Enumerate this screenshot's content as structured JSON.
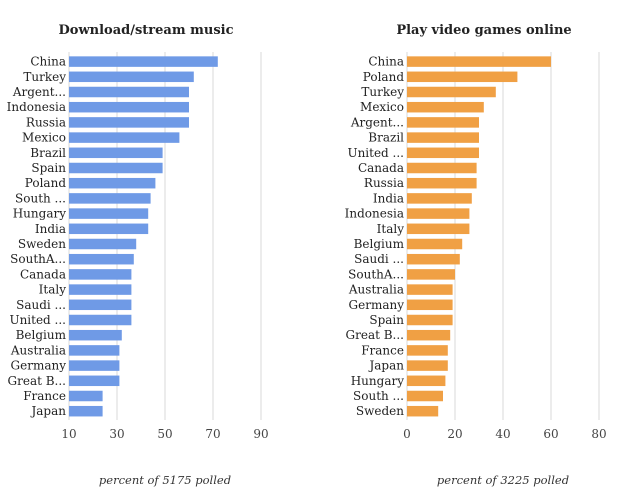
{
  "chart_data": [
    {
      "type": "bar",
      "orientation": "horizontal",
      "title": "Download/stream music",
      "xlabel": "percent of 5175 polled",
      "color": "#6f9ae6",
      "xlim": [
        10,
        90
      ],
      "xticks": [
        10,
        30,
        50,
        70,
        90
      ],
      "grid": true,
      "categories": [
        "China",
        "Turkey",
        "Argent...",
        "Indonesia",
        "Russia",
        "Mexico",
        "Brazil",
        "Spain",
        "Poland",
        "South ...",
        "Hungary",
        "India",
        "Sweden",
        "SouthA...",
        "Canada",
        "Italy",
        "Saudi ...",
        "United ...",
        "Belgium",
        "Australia",
        "Germany",
        "Great B...",
        "France",
        "Japan"
      ],
      "values": [
        72,
        62,
        60,
        60,
        60,
        56,
        49,
        49,
        46,
        44,
        43,
        43,
        38,
        37,
        36,
        36,
        36,
        36,
        32,
        31,
        31,
        31,
        24,
        24
      ]
    },
    {
      "type": "bar",
      "orientation": "horizontal",
      "title": "Play video games online",
      "xlabel": "percent of 3225 polled",
      "color": "#f0a044",
      "xlim": [
        0,
        80
      ],
      "xticks": [
        0,
        20,
        40,
        60,
        80
      ],
      "grid": true,
      "categories": [
        "China",
        "Poland",
        "Turkey",
        "Mexico",
        "Argent...",
        "Brazil",
        "United ...",
        "Canada",
        "Russia",
        "India",
        "Indonesia",
        "Italy",
        "Belgium",
        "Saudi ...",
        "SouthA...",
        "Australia",
        "Germany",
        "Spain",
        "Great B...",
        "France",
        "Japan",
        "Hungary",
        "South ...",
        "Sweden"
      ],
      "values": [
        60,
        46,
        37,
        32,
        30,
        30,
        30,
        29,
        29,
        27,
        26,
        26,
        23,
        22,
        20,
        19,
        19,
        19,
        18,
        17,
        17,
        16,
        15,
        13
      ]
    }
  ]
}
